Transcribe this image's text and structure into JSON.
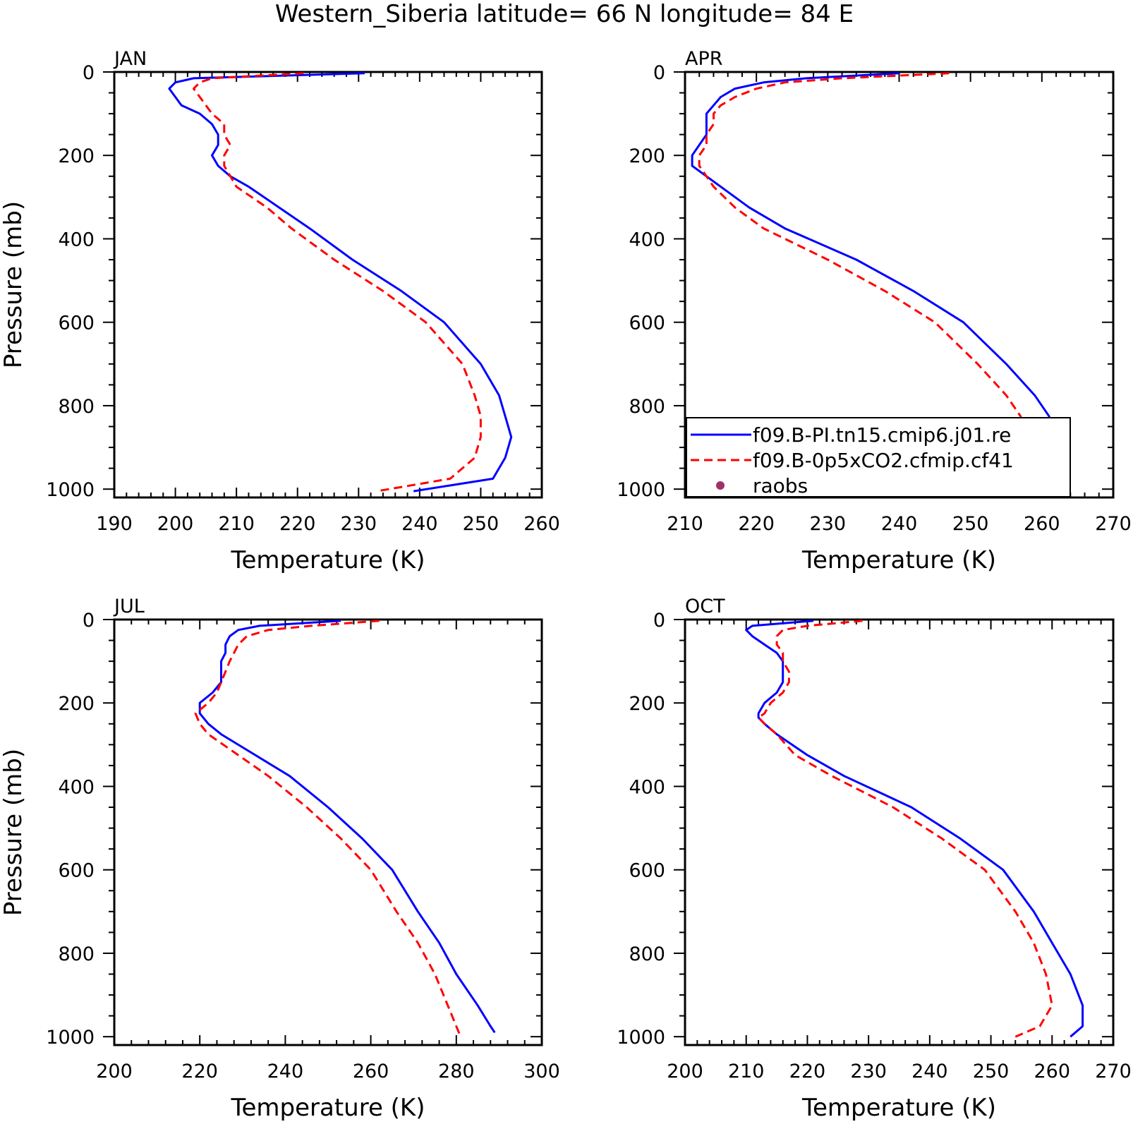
{
  "title": "Western_Siberia  latitude= 66 N longitude= 84 E",
  "colors": {
    "model_pi": "#0000ff",
    "model_co2": "#ff0000",
    "raobs": "#a0306a"
  },
  "legend": {
    "panel": 1,
    "entries": [
      {
        "label": "f09.B-PI.tn15.cmip6.j01.re",
        "style": "solid",
        "color": "#0000ff"
      },
      {
        "label": "f09.B-0p5xCO2.cfmip.cf41",
        "style": "dashed",
        "color": "#ff0000"
      },
      {
        "label": "raobs",
        "style": "dot",
        "color": "#a0306a"
      }
    ]
  },
  "chart_data": [
    {
      "type": "line",
      "title": "JAN",
      "xlabel": "Temperature (K)",
      "ylabel": "Pressure (mb)",
      "xlim": [
        190,
        260
      ],
      "xticks": [
        190,
        200,
        210,
        220,
        230,
        240,
        250,
        260
      ],
      "ylim": [
        1020,
        0
      ],
      "yticks": [
        0,
        200,
        400,
        600,
        800,
        1000
      ],
      "series": [
        {
          "name": "f09.B-PI.tn15.cmip6.j01.re",
          "style": "solid",
          "p": [
            3,
            15,
            25,
            40,
            60,
            80,
            100,
            125,
            150,
            175,
            200,
            225,
            250,
            275,
            325,
            375,
            450,
            525,
            600,
            700,
            775,
            825,
            875,
            925,
            975,
            1005
          ],
          "t": [
            231,
            203,
            200,
            199,
            200,
            201,
            204,
            206,
            207,
            207,
            206,
            207,
            209,
            212,
            217,
            222,
            229,
            237,
            244,
            250,
            253,
            254,
            255,
            254,
            252,
            239
          ]
        },
        {
          "name": "f09.B-0p5xCO2.cfmip.cf41",
          "style": "dashed",
          "p": [
            3,
            15,
            25,
            40,
            60,
            80,
            100,
            125,
            150,
            175,
            200,
            225,
            250,
            275,
            325,
            375,
            450,
            525,
            600,
            700,
            775,
            825,
            875,
            925,
            975,
            1005
          ],
          "t": [
            221,
            206,
            204,
            203,
            204,
            205,
            206,
            208,
            208,
            209,
            208,
            208,
            209,
            210,
            215,
            219,
            226,
            234,
            241,
            247,
            249,
            250,
            250,
            249,
            245,
            233
          ]
        }
      ]
    },
    {
      "type": "line",
      "title": "APR",
      "xlabel": "Temperature (K)",
      "ylabel": "",
      "xlim": [
        210,
        270
      ],
      "xticks": [
        210,
        220,
        230,
        240,
        250,
        260,
        270
      ],
      "ylim": [
        1020,
        0
      ],
      "yticks": [
        0,
        200,
        400,
        600,
        800,
        1000
      ],
      "series": [
        {
          "name": "f09.B-PI.tn15.cmip6.j01.re",
          "style": "solid",
          "p": [
            3,
            15,
            25,
            40,
            60,
            80,
            100,
            125,
            150,
            175,
            200,
            225,
            250,
            275,
            325,
            375,
            450,
            525,
            600,
            700,
            775,
            825,
            875,
            925,
            975,
            1000
          ],
          "t": [
            240,
            227,
            221,
            217,
            215,
            214,
            213,
            213,
            213,
            212,
            211,
            211,
            213,
            215,
            219,
            224,
            234,
            242,
            249,
            255,
            259,
            261,
            262,
            263,
            263,
            260
          ]
        },
        {
          "name": "f09.B-0p5xCO2.cfmip.cf41",
          "style": "dashed",
          "p": [
            3,
            15,
            25,
            40,
            60,
            80,
            100,
            125,
            150,
            175,
            200,
            225,
            250,
            275,
            325,
            375,
            450,
            525,
            600,
            700,
            775,
            825,
            875,
            925,
            975,
            1000
          ],
          "t": [
            247,
            232,
            224,
            220,
            217,
            215,
            214,
            214,
            213,
            213,
            212,
            212,
            213,
            214,
            217,
            221,
            230,
            238,
            245,
            251,
            255,
            257,
            258,
            258,
            257,
            254
          ]
        }
      ]
    },
    {
      "type": "line",
      "title": "JUL",
      "xlabel": "Temperature (K)",
      "ylabel": "Pressure (mb)",
      "xlim": [
        200,
        300
      ],
      "xticks": [
        200,
        220,
        240,
        260,
        280,
        300
      ],
      "ylim": [
        1020,
        0
      ],
      "yticks": [
        0,
        200,
        400,
        600,
        800,
        1000
      ],
      "series": [
        {
          "name": "f09.B-PI.tn15.cmip6.j01.re",
          "style": "solid",
          "p": [
            3,
            15,
            25,
            40,
            60,
            80,
            100,
            125,
            150,
            175,
            200,
            225,
            250,
            275,
            325,
            375,
            450,
            525,
            600,
            700,
            775,
            850,
            925,
            975,
            990
          ],
          "t": [
            253,
            234,
            229,
            227,
            226,
            226,
            225,
            225,
            225,
            223,
            220,
            220,
            222,
            225,
            233,
            241,
            250,
            258,
            265,
            271,
            276,
            280,
            285,
            288,
            289
          ]
        },
        {
          "name": "f09.B-0p5xCO2.cfmip.cf41",
          "style": "dashed",
          "p": [
            3,
            15,
            25,
            40,
            60,
            80,
            100,
            125,
            150,
            175,
            200,
            225,
            250,
            275,
            325,
            375,
            450,
            525,
            600,
            700,
            775,
            850,
            925,
            975,
            1000
          ],
          "t": [
            262,
            246,
            236,
            231,
            229,
            228,
            227,
            226,
            225,
            224,
            222,
            219,
            220,
            222,
            229,
            236,
            245,
            253,
            260,
            266,
            271,
            275,
            278,
            280,
            281
          ]
        }
      ]
    },
    {
      "type": "line",
      "title": "OCT",
      "xlabel": "Temperature (K)",
      "ylabel": "",
      "xlim": [
        200,
        270
      ],
      "xticks": [
        200,
        210,
        220,
        230,
        240,
        250,
        260,
        270
      ],
      "ylim": [
        1020,
        0
      ],
      "yticks": [
        0,
        200,
        400,
        600,
        800,
        1000
      ],
      "series": [
        {
          "name": "f09.B-PI.tn15.cmip6.j01.re",
          "style": "solid",
          "p": [
            3,
            15,
            25,
            40,
            60,
            80,
            100,
            125,
            150,
            175,
            200,
            225,
            235,
            250,
            275,
            325,
            375,
            450,
            525,
            600,
            700,
            775,
            850,
            925,
            975,
            1000
          ],
          "t": [
            221,
            211,
            210,
            211,
            213,
            215,
            216,
            216,
            216,
            215,
            213,
            212,
            212,
            213,
            215,
            220,
            226,
            237,
            245,
            252,
            257,
            260,
            263,
            265,
            265,
            263
          ]
        },
        {
          "name": "f09.B-0p5xCO2.cfmip.cf41",
          "style": "dashed",
          "p": [
            3,
            15,
            25,
            40,
            60,
            80,
            100,
            125,
            150,
            175,
            200,
            225,
            235,
            250,
            275,
            325,
            375,
            450,
            525,
            600,
            700,
            775,
            850,
            925,
            975,
            1000
          ],
          "t": [
            229,
            220,
            216,
            215,
            215,
            216,
            216,
            217,
            217,
            216,
            214,
            213,
            212,
            213,
            215,
            218,
            224,
            234,
            242,
            249,
            254,
            257,
            259,
            260,
            258,
            254
          ]
        }
      ]
    }
  ]
}
